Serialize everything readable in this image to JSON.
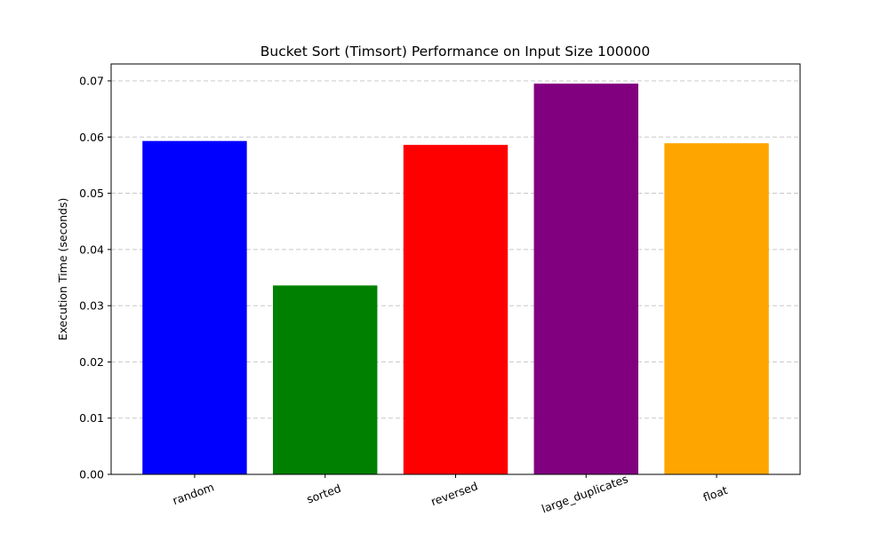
{
  "chart_data": {
    "type": "bar",
    "title": "Bucket Sort (Timsort) Performance on Input Size 100000",
    "xlabel": "",
    "ylabel": "Execution Time (seconds)",
    "categories": [
      "random",
      "sorted",
      "reversed",
      "large_duplicates",
      "float"
    ],
    "values": [
      0.0593,
      0.0336,
      0.0586,
      0.0695,
      0.0589
    ],
    "colors": [
      "#0000ff",
      "#008000",
      "#ff0000",
      "#800080",
      "#ffa500"
    ],
    "ylim": [
      0,
      0.073
    ],
    "yticks": [
      0.0,
      0.01,
      0.02,
      0.03,
      0.04,
      0.05,
      0.06,
      0.07
    ],
    "ytick_labels": [
      "0.00",
      "0.01",
      "0.02",
      "0.03",
      "0.04",
      "0.05",
      "0.06",
      "0.07"
    ],
    "grid": "y-dashed",
    "legend": "none",
    "xtick_rotation_deg": -20
  }
}
